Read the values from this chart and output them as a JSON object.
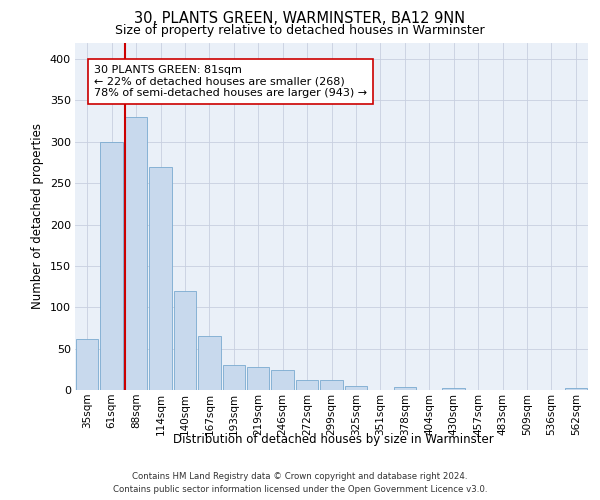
{
  "title": "30, PLANTS GREEN, WARMINSTER, BA12 9NN",
  "subtitle": "Size of property relative to detached houses in Warminster",
  "xlabel": "Distribution of detached houses by size in Warminster",
  "ylabel": "Number of detached properties",
  "bar_color": "#c8d9ed",
  "bar_edge_color": "#7aaad0",
  "grid_color": "#c8cfe0",
  "background_color": "#eaf0f8",
  "categories": [
    "35sqm",
    "61sqm",
    "88sqm",
    "114sqm",
    "140sqm",
    "167sqm",
    "193sqm",
    "219sqm",
    "246sqm",
    "272sqm",
    "299sqm",
    "325sqm",
    "351sqm",
    "378sqm",
    "404sqm",
    "430sqm",
    "457sqm",
    "483sqm",
    "509sqm",
    "536sqm",
    "562sqm"
  ],
  "values": [
    62,
    300,
    330,
    270,
    120,
    65,
    30,
    28,
    24,
    12,
    12,
    5,
    0,
    4,
    0,
    3,
    0,
    0,
    0,
    0,
    3
  ],
  "annotation_text": "30 PLANTS GREEN: 81sqm\n← 22% of detached houses are smaller (268)\n78% of semi-detached houses are larger (943) →",
  "vline_bar_index": 2,
  "vline_color": "#cc0000",
  "annotation_box_facecolor": "white",
  "annotation_box_edgecolor": "#cc0000",
  "ylim": [
    0,
    420
  ],
  "yticks": [
    0,
    50,
    100,
    150,
    200,
    250,
    300,
    350,
    400
  ],
  "footer_line1": "Contains HM Land Registry data © Crown copyright and database right 2024.",
  "footer_line2": "Contains public sector information licensed under the Open Government Licence v3.0."
}
